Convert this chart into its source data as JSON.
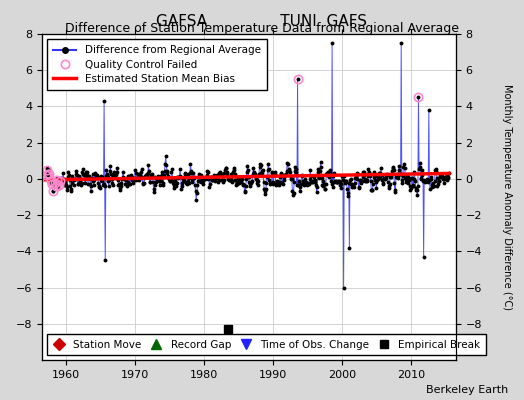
{
  "title": "GAFSA               TUNI  GAFS",
  "subtitle": "Difference of Station Temperature Data from Regional Average",
  "ylabel": "Monthly Temperature Anomaly Difference (°C)",
  "xlabel_credit": "Berkeley Earth",
  "ylim": [
    -10,
    8
  ],
  "yticks_right": [
    -8,
    -6,
    -4,
    -2,
    0,
    2,
    4,
    6,
    8
  ],
  "yticks_left": [
    -8,
    -6,
    -4,
    -2,
    0,
    2,
    4,
    6,
    8
  ],
  "xlim": [
    1956.5,
    2016.5
  ],
  "xticks": [
    1960,
    1970,
    1980,
    1990,
    2000,
    2010
  ],
  "line_color": "#3333FF",
  "marker_color": "#000000",
  "bias_color": "#FF0000",
  "qc_color": "#FF88CC",
  "background_color": "#D8D8D8",
  "plot_bg_color": "#FFFFFF",
  "station_move_color": "#CC0000",
  "record_gap_color": "#006600",
  "time_obs_color": "#2222FF",
  "empirical_break_color": "#000000",
  "grid_color": "#CCCCCC",
  "seed": 42,
  "title_fontsize": 11,
  "subtitle_fontsize": 9,
  "tick_fontsize": 8,
  "legend_fontsize": 7.5,
  "credit_fontsize": 8
}
